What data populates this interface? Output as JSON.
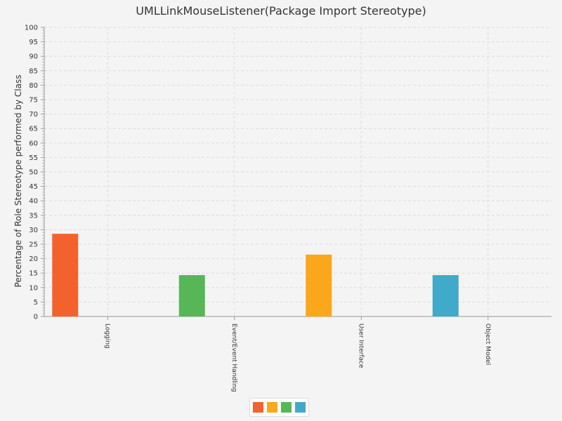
{
  "chart_data": {
    "type": "bar",
    "title": "UMLLinkMouseListener(Package Import Stereotype)",
    "ylabel": "Percentage of Role Stereotype performed by Class",
    "xlabel": "",
    "ylim": [
      0,
      100
    ],
    "yticks": [
      0,
      5,
      10,
      15,
      20,
      25,
      30,
      35,
      40,
      45,
      50,
      55,
      60,
      65,
      70,
      75,
      80,
      85,
      90,
      95,
      100
    ],
    "categories": [
      "Logging",
      "Event/Event Handling",
      "User Interface",
      "Object Model"
    ],
    "values": [
      28.6,
      14.3,
      21.4,
      14.3
    ],
    "colors": [
      "#f3622d",
      "#57b757",
      "#fba71b",
      "#41a9c9"
    ],
    "grid": true,
    "legend_position": "bottom",
    "legend_colors": [
      "#f3622d",
      "#fba71b",
      "#57b757",
      "#41a9c9"
    ]
  }
}
